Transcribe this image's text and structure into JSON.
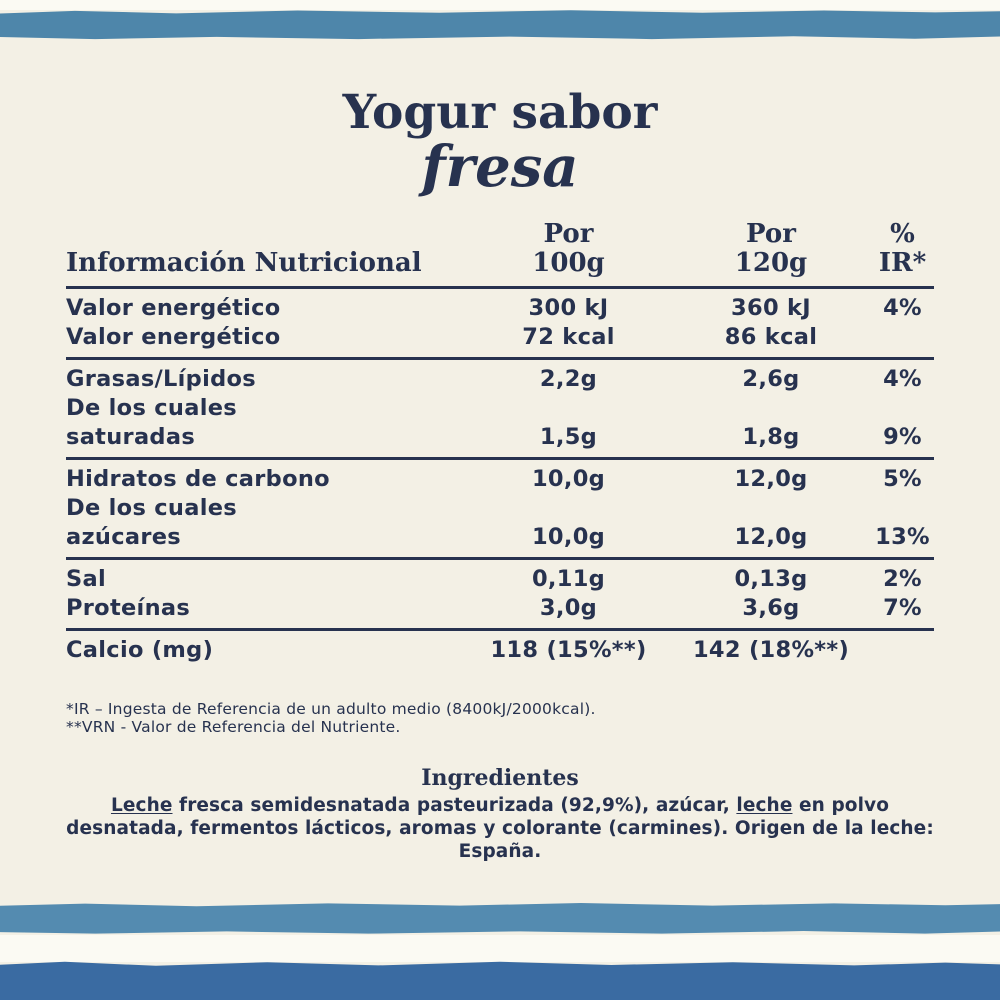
{
  "page": {
    "background_color": "#f3f0e5",
    "text_color": "#27324f",
    "white_strip_color": "#fbfaf3"
  },
  "decor": {
    "top_bar_color": "#4e86aa",
    "bottom_stripe_color": "#548bb0",
    "bottom_bar_color": "#3a6ba2"
  },
  "title": {
    "line1": "Yogur sabor",
    "line2": "fresa"
  },
  "table": {
    "header": {
      "label": "Información Nutricional",
      "col_per100": [
        "Por",
        "100g"
      ],
      "col_per120": [
        "Por",
        "120g"
      ],
      "col_ir": [
        "%",
        "IR*"
      ]
    },
    "sections": [
      {
        "rows": [
          {
            "label": "Valor energético",
            "per100": "300 kJ",
            "per120": "360 kJ",
            "ir": "4%"
          },
          {
            "label": "Valor energético",
            "per100": "72 kcal",
            "per120": "86 kcal",
            "ir": ""
          }
        ]
      },
      {
        "rows": [
          {
            "label": "Grasas/Lípidos",
            "per100": "2,2g",
            "per120": "2,6g",
            "ir": "4%"
          },
          {
            "label": "De los cuales",
            "per100": "",
            "per120": "",
            "ir": ""
          },
          {
            "label": "saturadas",
            "per100": "1,5g",
            "per120": "1,8g",
            "ir": "9%"
          }
        ]
      },
      {
        "rows": [
          {
            "label": "Hidratos de carbono",
            "per100": "10,0g",
            "per120": "12,0g",
            "ir": "5%"
          },
          {
            "label": "De los cuales",
            "per100": "",
            "per120": "",
            "ir": ""
          },
          {
            "label": "azúcares",
            "per100": "10,0g",
            "per120": "12,0g",
            "ir": "13%"
          }
        ]
      },
      {
        "rows": [
          {
            "label": "Sal",
            "per100": "0,11g",
            "per120": "0,13g",
            "ir": "2%"
          },
          {
            "label": "Proteínas",
            "per100": "3,0g",
            "per120": "3,6g",
            "ir": "7%"
          }
        ]
      },
      {
        "rows": [
          {
            "label": "Calcio (mg)",
            "per100": "118 (15%**)",
            "per120": "142 (18%**)",
            "ir": ""
          }
        ]
      }
    ]
  },
  "footnotes": [
    "*IR – Ingesta de Referencia de un adulto medio (8400kJ/2000kcal).",
    "**VRN - Valor de Referencia del Nutriente."
  ],
  "ingredients": {
    "title": "Ingredientes",
    "segments": [
      {
        "text": "Leche",
        "underline": true
      },
      {
        "text": " fresca semidesnatada pasteurizada (92,9%), azúcar, ",
        "underline": false
      },
      {
        "text": "leche",
        "underline": true
      },
      {
        "text": " en polvo desnatada, fermentos lácticos, aromas y colorante (carmines). Origen de la leche: España.",
        "underline": false
      }
    ]
  }
}
